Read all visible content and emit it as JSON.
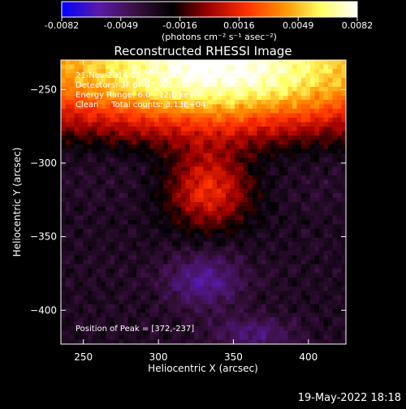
{
  "colorbar": {
    "ticks": [
      "-0.0082",
      "-0.0049",
      "-0.0016",
      "0.0016",
      "0.0049",
      "0.0082"
    ],
    "unit_label": "(photons cm⁻² s⁻¹ asec⁻²)",
    "colors": [
      "#0000ff",
      "#5a1aa8",
      "#3a1040",
      "#000000",
      "#a00000",
      "#ff3000",
      "#ff9000",
      "#ffff60",
      "#ffffff"
    ]
  },
  "overlay": {
    "line1": "21-Nov-2014 02:30:40.000 to 02:36:40.000",
    "line2": "Detectors: 3F 6F 9F, Att 0",
    "line3": "Energy Range: 6.0 - 12.0 keV",
    "line4": "Clean     Total counts: 3.13E+04",
    "peak": "Position of Peak = [372,-237]"
  },
  "footer": {
    "timestamp": "19-May-2022 18:18"
  },
  "chart_data": {
    "type": "heatmap",
    "title": "Reconstructed RHESSI Image",
    "xlabel": "Heliocentric X (arcsec)",
    "ylabel": "Heliocentric Y (arcsec)",
    "xlim": [
      235,
      425
    ],
    "ylim": [
      -423,
      -230
    ],
    "xticks": [
      250,
      300,
      350,
      400
    ],
    "yticks": [
      -250,
      -300,
      -350,
      -400
    ],
    "zlim": [
      -0.0082,
      0.0082
    ],
    "peak": [
      372,
      -237
    ]
  }
}
